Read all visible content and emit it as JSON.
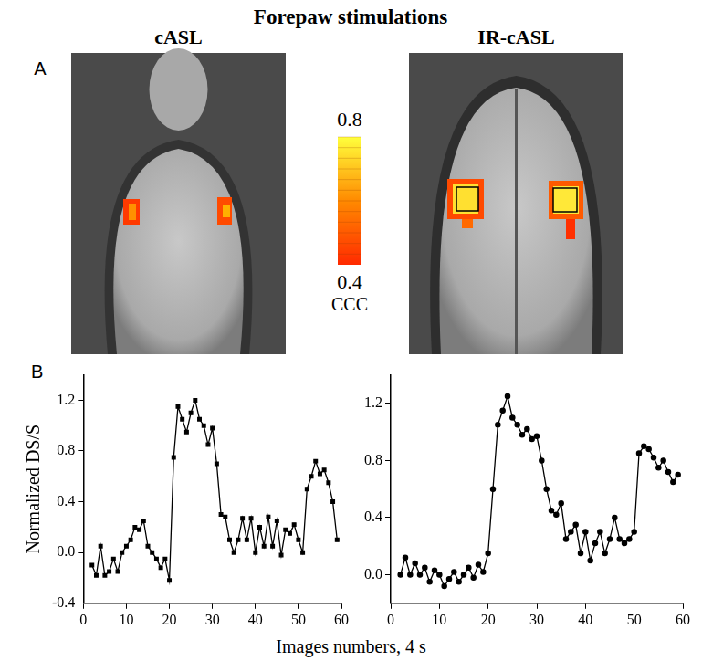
{
  "title": "Forepaw stimulations",
  "panel_a": {
    "letter": "A",
    "images": [
      "cASL",
      "IR-cASL"
    ],
    "colorbar": {
      "label": "CCC",
      "range": [
        0.4,
        0.8
      ],
      "ticks": [
        0.4,
        0.8
      ]
    }
  },
  "panel_b": {
    "letter": "B",
    "xlabel": "Images numbers, 4 s"
  },
  "chart_data": [
    {
      "type": "line",
      "ylabel": "Normalized DS/S",
      "grid": false,
      "marker": "square",
      "color": "#000000",
      "x": [
        2,
        3,
        4,
        5,
        6,
        7,
        8,
        9,
        10,
        11,
        12,
        13,
        14,
        15,
        16,
        17,
        18,
        19,
        20,
        21,
        22,
        23,
        24,
        25,
        26,
        27,
        28,
        29,
        30,
        31,
        32,
        33,
        34,
        35,
        36,
        37,
        38,
        39,
        40,
        41,
        42,
        43,
        44,
        45,
        46,
        47,
        48,
        49,
        50,
        51,
        52,
        53,
        54,
        55,
        56,
        57,
        58,
        59
      ],
      "values": [
        -0.1,
        -0.18,
        0.05,
        -0.18,
        -0.15,
        -0.05,
        -0.15,
        0.0,
        0.05,
        0.1,
        0.2,
        0.18,
        0.25,
        0.05,
        0.0,
        -0.05,
        -0.12,
        -0.05,
        -0.22,
        0.75,
        1.15,
        1.05,
        0.95,
        1.1,
        1.2,
        1.05,
        1.0,
        0.85,
        0.98,
        0.7,
        0.3,
        0.28,
        0.1,
        0.0,
        0.1,
        0.27,
        0.1,
        0.27,
        0.0,
        0.2,
        0.05,
        0.28,
        0.05,
        0.25,
        -0.02,
        0.18,
        0.15,
        0.22,
        0.1,
        0.0,
        0.5,
        0.6,
        0.72,
        0.62,
        0.65,
        0.55,
        0.4,
        0.1
      ],
      "xlim": [
        0,
        60
      ],
      "xticks": [
        0,
        10,
        20,
        30,
        40,
        50,
        60
      ],
      "ylim": [
        -0.4,
        1.4
      ],
      "yticks": [
        -0.4,
        {
          "value": 0,
          "label": "0.0"
        },
        0.4,
        0.8,
        1.2
      ]
    },
    {
      "type": "line",
      "grid": false,
      "marker": "circle",
      "color": "#000000",
      "x": [
        2,
        3,
        4,
        5,
        6,
        7,
        8,
        9,
        10,
        11,
        12,
        13,
        14,
        15,
        16,
        17,
        18,
        19,
        20,
        21,
        22,
        23,
        24,
        25,
        26,
        27,
        28,
        29,
        30,
        31,
        32,
        33,
        34,
        35,
        36,
        37,
        38,
        39,
        40,
        41,
        42,
        43,
        44,
        45,
        46,
        47,
        48,
        49,
        50,
        51,
        52,
        53,
        54,
        55,
        56,
        57,
        58,
        59
      ],
      "values": [
        0.0,
        0.12,
        0.0,
        0.08,
        0.0,
        0.05,
        -0.05,
        0.03,
        0.0,
        -0.08,
        -0.03,
        0.02,
        -0.05,
        0.0,
        0.05,
        -0.02,
        0.07,
        0.02,
        0.15,
        0.6,
        1.05,
        1.15,
        1.25,
        1.1,
        1.05,
        0.98,
        1.02,
        0.95,
        0.97,
        0.8,
        0.6,
        0.45,
        0.42,
        0.5,
        0.25,
        0.3,
        0.35,
        0.15,
        0.3,
        0.1,
        0.22,
        0.3,
        0.15,
        0.25,
        0.4,
        0.25,
        0.22,
        0.25,
        0.3,
        0.85,
        0.9,
        0.88,
        0.82,
        0.75,
        0.8,
        0.72,
        0.65,
        0.7
      ],
      "xlim": [
        0,
        60
      ],
      "xticks": [
        0,
        10,
        20,
        30,
        40,
        50,
        60
      ],
      "ylim": [
        -0.2,
        1.4
      ],
      "yticks": [
        {
          "value": 0,
          "label": "0.0"
        },
        0.4,
        0.8,
        1.2
      ]
    }
  ]
}
